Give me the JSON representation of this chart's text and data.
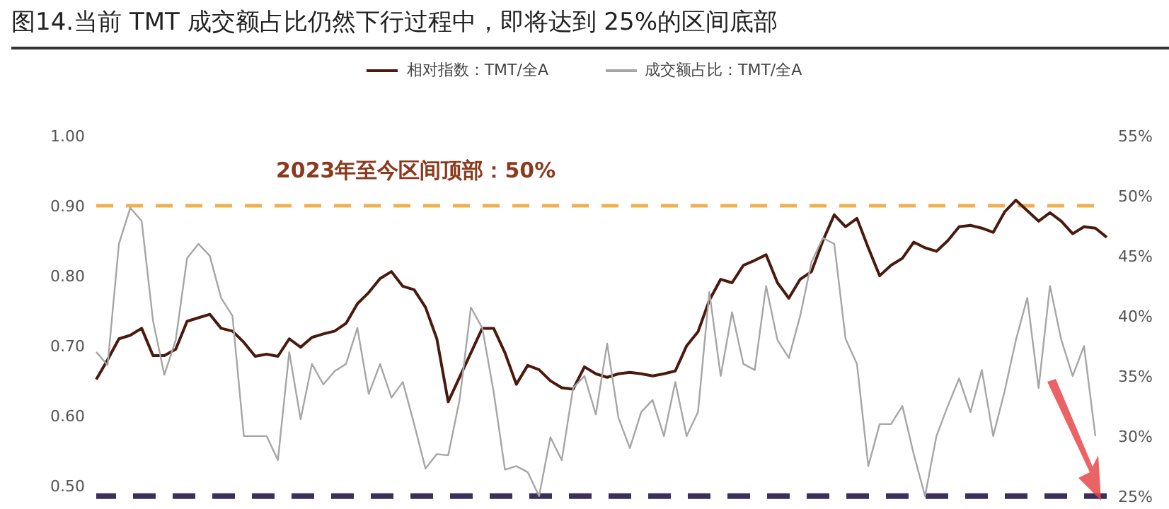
{
  "chart_data": {
    "type": "line",
    "title": "图14.当前 TMT 成交额占比仍然下行过程中，即将达到 25%的区间底部",
    "categories": [
      null,
      null,
      null,
      null,
      null,
      null,
      null,
      null,
      null,
      null,
      null,
      null,
      null,
      null,
      null,
      null,
      null,
      null,
      null,
      null,
      null,
      null,
      null,
      null,
      null,
      null,
      null,
      null,
      null,
      null,
      null,
      null,
      null,
      null,
      null,
      null,
      null,
      null,
      null,
      null,
      null,
      null,
      null,
      null,
      null,
      null,
      null,
      null,
      null,
      null,
      null,
      null,
      null,
      null,
      null,
      null,
      null,
      null,
      null,
      null,
      null,
      null,
      null,
      null,
      null,
      null,
      null,
      null,
      null,
      null,
      null,
      null,
      null,
      null,
      null,
      null,
      null,
      null,
      null,
      null,
      null,
      null,
      null,
      null,
      null,
      null,
      null,
      null,
      null,
      null
    ],
    "series": [
      {
        "name": "相对指数：TMT/全A",
        "color": "#4a1a0e",
        "axis": "y",
        "values": [
          0.652,
          0.68,
          0.71,
          0.715,
          0.725,
          0.686,
          0.686,
          0.695,
          0.735,
          0.74,
          0.745,
          0.725,
          0.721,
          0.705,
          0.685,
          0.688,
          0.685,
          0.71,
          0.698,
          0.712,
          0.717,
          0.721,
          0.732,
          0.76,
          0.776,
          0.796,
          0.806,
          0.785,
          0.78,
          0.755,
          0.71,
          0.62,
          0.655,
          0.69,
          0.725,
          0.725,
          0.69,
          0.645,
          0.672,
          0.666,
          0.65,
          0.64,
          0.638,
          0.67,
          0.66,
          0.655,
          0.66,
          0.662,
          0.66,
          0.657,
          0.66,
          0.664,
          0.7,
          0.72,
          0.765,
          0.795,
          0.79,
          0.815,
          0.822,
          0.83,
          0.79,
          0.768,
          0.795,
          0.806,
          0.85,
          0.887,
          0.87,
          0.882,
          0.84,
          0.8,
          0.815,
          0.825,
          0.848,
          0.84,
          0.835,
          0.85,
          0.87,
          0.872,
          0.868,
          0.862,
          0.891,
          0.908,
          0.893,
          0.878,
          0.89,
          0.878,
          0.86,
          0.87,
          0.868,
          0.855
        ]
      },
      {
        "name": "成交额占比：TMT/全A",
        "color": "#a6a6a6",
        "axis": "y2",
        "values": [
          37,
          35.9,
          46,
          49,
          47.9,
          39.6,
          35.1,
          38,
          44.8,
          46,
          45,
          41.5,
          40,
          30,
          30,
          30,
          28,
          37,
          31.4,
          36,
          34.3,
          35.4,
          36,
          39,
          33.5,
          36,
          33.2,
          34.5,
          31,
          27.3,
          28.5,
          28.4,
          33,
          40.7,
          39,
          33.7,
          27.2,
          27.5,
          27,
          25,
          29.9,
          28,
          34,
          35,
          31.8,
          37.7,
          31.5,
          29,
          32,
          33,
          30,
          34.5,
          30,
          32,
          42,
          35,
          40.3,
          36,
          35.5,
          42.5,
          38,
          36.5,
          40,
          44.5,
          46.5,
          46,
          38.1,
          36,
          27.5,
          31,
          31,
          32.5,
          28.5,
          25,
          30,
          32.5,
          34.8,
          32,
          35.5,
          30,
          33.7,
          38,
          41.5,
          34,
          42.5,
          38,
          35,
          37.5,
          30,
          null
        ]
      }
    ],
    "ylim": [
      0.475,
      1.0
    ],
    "yticks": [
      {
        "value": 0.5,
        "label": "0.50"
      },
      {
        "value": 0.6,
        "label": "0.60"
      },
      {
        "value": 0.7,
        "label": "0.70"
      },
      {
        "value": 0.8,
        "label": "0.80"
      },
      {
        "value": 0.9,
        "label": "0.90"
      },
      {
        "value": 1.0,
        "label": "1.00"
      }
    ],
    "y2lim": [
      24.4,
      55
    ],
    "y2ticks": [
      {
        "value": 25,
        "label": "25%"
      },
      {
        "value": 30,
        "label": "30%"
      },
      {
        "value": 35,
        "label": "35%"
      },
      {
        "value": 40,
        "label": "40%"
      },
      {
        "value": 45,
        "label": "45%"
      },
      {
        "value": 50,
        "label": "50%"
      },
      {
        "value": 55,
        "label": "55%"
      }
    ],
    "ref_lines": [
      {
        "axis": "y",
        "value": 0.9,
        "label": "2023年至今区间顶部：50%",
        "color": "#f0b050",
        "line_style": "dashed"
      },
      {
        "axis": "y2",
        "value": 25,
        "color": "#3d2f5c",
        "line_style": "dashed"
      }
    ],
    "legend": "top",
    "grid": false,
    "marker": "none",
    "line_style": "solid",
    "tick_labels": "y"
  }
}
